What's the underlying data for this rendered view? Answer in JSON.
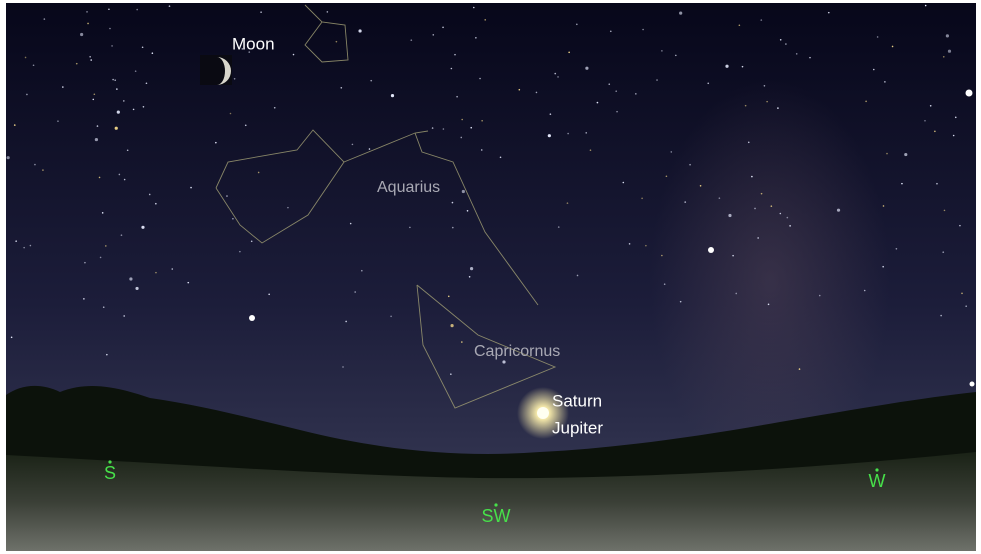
{
  "labels": {
    "moon": "Moon",
    "constellations": [
      "Aquarius",
      "Capricornus"
    ],
    "planets": [
      "Saturn",
      "Jupiter"
    ]
  },
  "compass": [
    "S",
    "SW",
    "W"
  ]
}
